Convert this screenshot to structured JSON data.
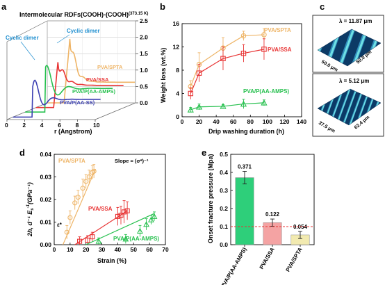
{
  "colors": {
    "spta": "#eeb466",
    "ssa": "#e83333",
    "aamps": "#26c04e",
    "aass": "#3b3fb2",
    "cyclic": "#1f8fd0",
    "bar_aamps": "#2ecf7a",
    "bar_ssa": "#f4a3a3",
    "bar_spta": "#f2eab0"
  },
  "panels": {
    "a": {
      "letter": "a"
    },
    "b": {
      "letter": "b"
    },
    "c": {
      "letter": "c",
      "top_lambda": "λ = 11.87 μm",
      "top_dim1": "50.0 μm",
      "top_dim2": "50.0 μm",
      "bottom_lambda": "λ = 5.12 μm",
      "bottom_dim1": "37.5 μm",
      "bottom_dim2": "62.4 μm"
    },
    "d": {
      "letter": "d",
      "annotation": "Slope = (σ*)⁻¹",
      "point_label": "ε*"
    },
    "e": {
      "letter": "e"
    }
  },
  "chart_data": [
    {
      "panel": "a",
      "type": "line",
      "title": "Intermolecular RDFs(COOH)-(COOH)",
      "title_sup": "(373.15 K)",
      "xlabel": "r (Angstrom)",
      "xticks": [
        0,
        2,
        4,
        6,
        8,
        10
      ],
      "zticks": [
        "0.0",
        "0.5",
        "1.0",
        "1.5",
        "2.0",
        "2.5"
      ],
      "xlim": [
        0,
        10
      ],
      "zlim": [
        0,
        2.5
      ],
      "annotations": [
        "Cyclic dimer",
        "Cyclic dimer"
      ],
      "series": [
        {
          "name": "PVA/SPTA",
          "color": "spta"
        },
        {
          "name": "PVA/SSA",
          "color": "ssa"
        },
        {
          "name": "PVA/P(AA-AMPS)",
          "color": "aamps"
        },
        {
          "name": "PVA/P(AA-SS)",
          "color": "aass"
        }
      ]
    },
    {
      "panel": "b",
      "type": "line",
      "xlabel": "Drip washing duration (h)",
      "ylabel": "Weight loss (wt.%)",
      "xlim": [
        0,
        140
      ],
      "ylim": [
        0,
        16
      ],
      "xticks": [
        0,
        20,
        40,
        60,
        80,
        100,
        120,
        140
      ],
      "yticks": [
        0,
        4,
        8,
        12,
        16
      ],
      "series": [
        {
          "name": "PVA/SPTA",
          "color": "spta",
          "marker": "circle",
          "x": [
            10,
            20,
            48,
            72,
            96
          ],
          "y": [
            5.2,
            9.0,
            11.8,
            13.9,
            14.1
          ],
          "err": [
            1.0,
            2.0,
            1.8,
            0.8,
            1.0
          ]
        },
        {
          "name": "PVA/SSA",
          "color": "ssa",
          "marker": "square",
          "x": [
            10,
            20,
            48,
            72,
            96
          ],
          "y": [
            4.0,
            7.5,
            10.0,
            10.9,
            11.6
          ],
          "err": [
            1.0,
            1.5,
            2.0,
            1.5,
            1.8
          ]
        },
        {
          "name": "PVA/P(AA-AMPS)",
          "color": "aamps",
          "marker": "triangle",
          "x": [
            10,
            20,
            48,
            72,
            96
          ],
          "y": [
            1.2,
            1.7,
            1.8,
            2.2,
            2.4
          ],
          "err": [
            0.4,
            0.5,
            0.3,
            0.8,
            0.5
          ]
        }
      ]
    },
    {
      "panel": "d",
      "type": "scatter",
      "xlabel": "Strain (%)",
      "ylabel": "2h, d⁻¹ E",
      "ylabel_sub": "s",
      "ylabel_sup": "-1",
      "ylabel_unit": "(GPa⁻¹)",
      "xlim": [
        0,
        70
      ],
      "ylim": [
        0,
        0.04
      ],
      "xticks": [
        0,
        10,
        20,
        30,
        40,
        50,
        60,
        70
      ],
      "yticks": [
        "0.00",
        "0.01",
        "0.02",
        "0.03",
        "0.04"
      ],
      "series": [
        {
          "name": "PVA/SPTA",
          "color": "spta",
          "marker": "circle",
          "x": [
            8,
            10,
            13,
            15,
            18,
            20,
            22,
            24,
            25
          ],
          "y": [
            0.0055,
            0.012,
            0.0185,
            0.021,
            0.025,
            0.028,
            0.03,
            0.032,
            0.0325
          ],
          "err": [
            0.003,
            0.003,
            0.003,
            0.003,
            0.004,
            0.003,
            0.003,
            0.003,
            0.003
          ],
          "fit": [
            [
              5.5,
              0.0
            ],
            [
              26,
              0.0335
            ]
          ]
        },
        {
          "name": "PVA/SSA",
          "color": "ssa",
          "marker": "square",
          "x": [
            16,
            21,
            24,
            40,
            42,
            44,
            46
          ],
          "y": [
            0.0015,
            0.002,
            0.0035,
            0.0125,
            0.013,
            0.0145,
            0.015
          ],
          "err": [
            0.002,
            0.002,
            0.002,
            0.004,
            0.004,
            0.005,
            0.004
          ],
          "fit": [
            [
              13,
              0.0
            ],
            [
              46,
              0.015
            ]
          ]
        },
        {
          "name": "PVA/P(AA-AMPS)",
          "color": "aamps",
          "marker": "triangle",
          "x": [
            28,
            45,
            54,
            58,
            61,
            63
          ],
          "y": [
            0.0015,
            0.0025,
            0.006,
            0.009,
            0.011,
            0.0125
          ],
          "err": [
            0.0015,
            0.002,
            0.0025,
            0.0025,
            0.002,
            0.002
          ],
          "fit": [
            [
              20,
              0.0
            ],
            [
              63,
              0.0138
            ]
          ]
        }
      ]
    },
    {
      "panel": "e",
      "type": "bar",
      "ylabel": "Onset fracture pressure (Mpa)",
      "ylim": [
        0,
        0.5
      ],
      "yticks": [
        "0.0",
        "0.1",
        "0.2",
        "0.3",
        "0.4",
        "0.5"
      ],
      "categories": [
        "PVA/P(AA-AMPS)",
        "PVA/SSA",
        "PVA/SPTA"
      ],
      "values": [
        0.371,
        0.122,
        0.054
      ],
      "value_labels": [
        "0.371",
        "0.122",
        "0.054"
      ],
      "err": [
        0.035,
        0.02,
        0.02
      ],
      "bar_colors": [
        "bar_aamps",
        "bar_ssa",
        "bar_spta"
      ],
      "reference_line": 0.1
    }
  ]
}
